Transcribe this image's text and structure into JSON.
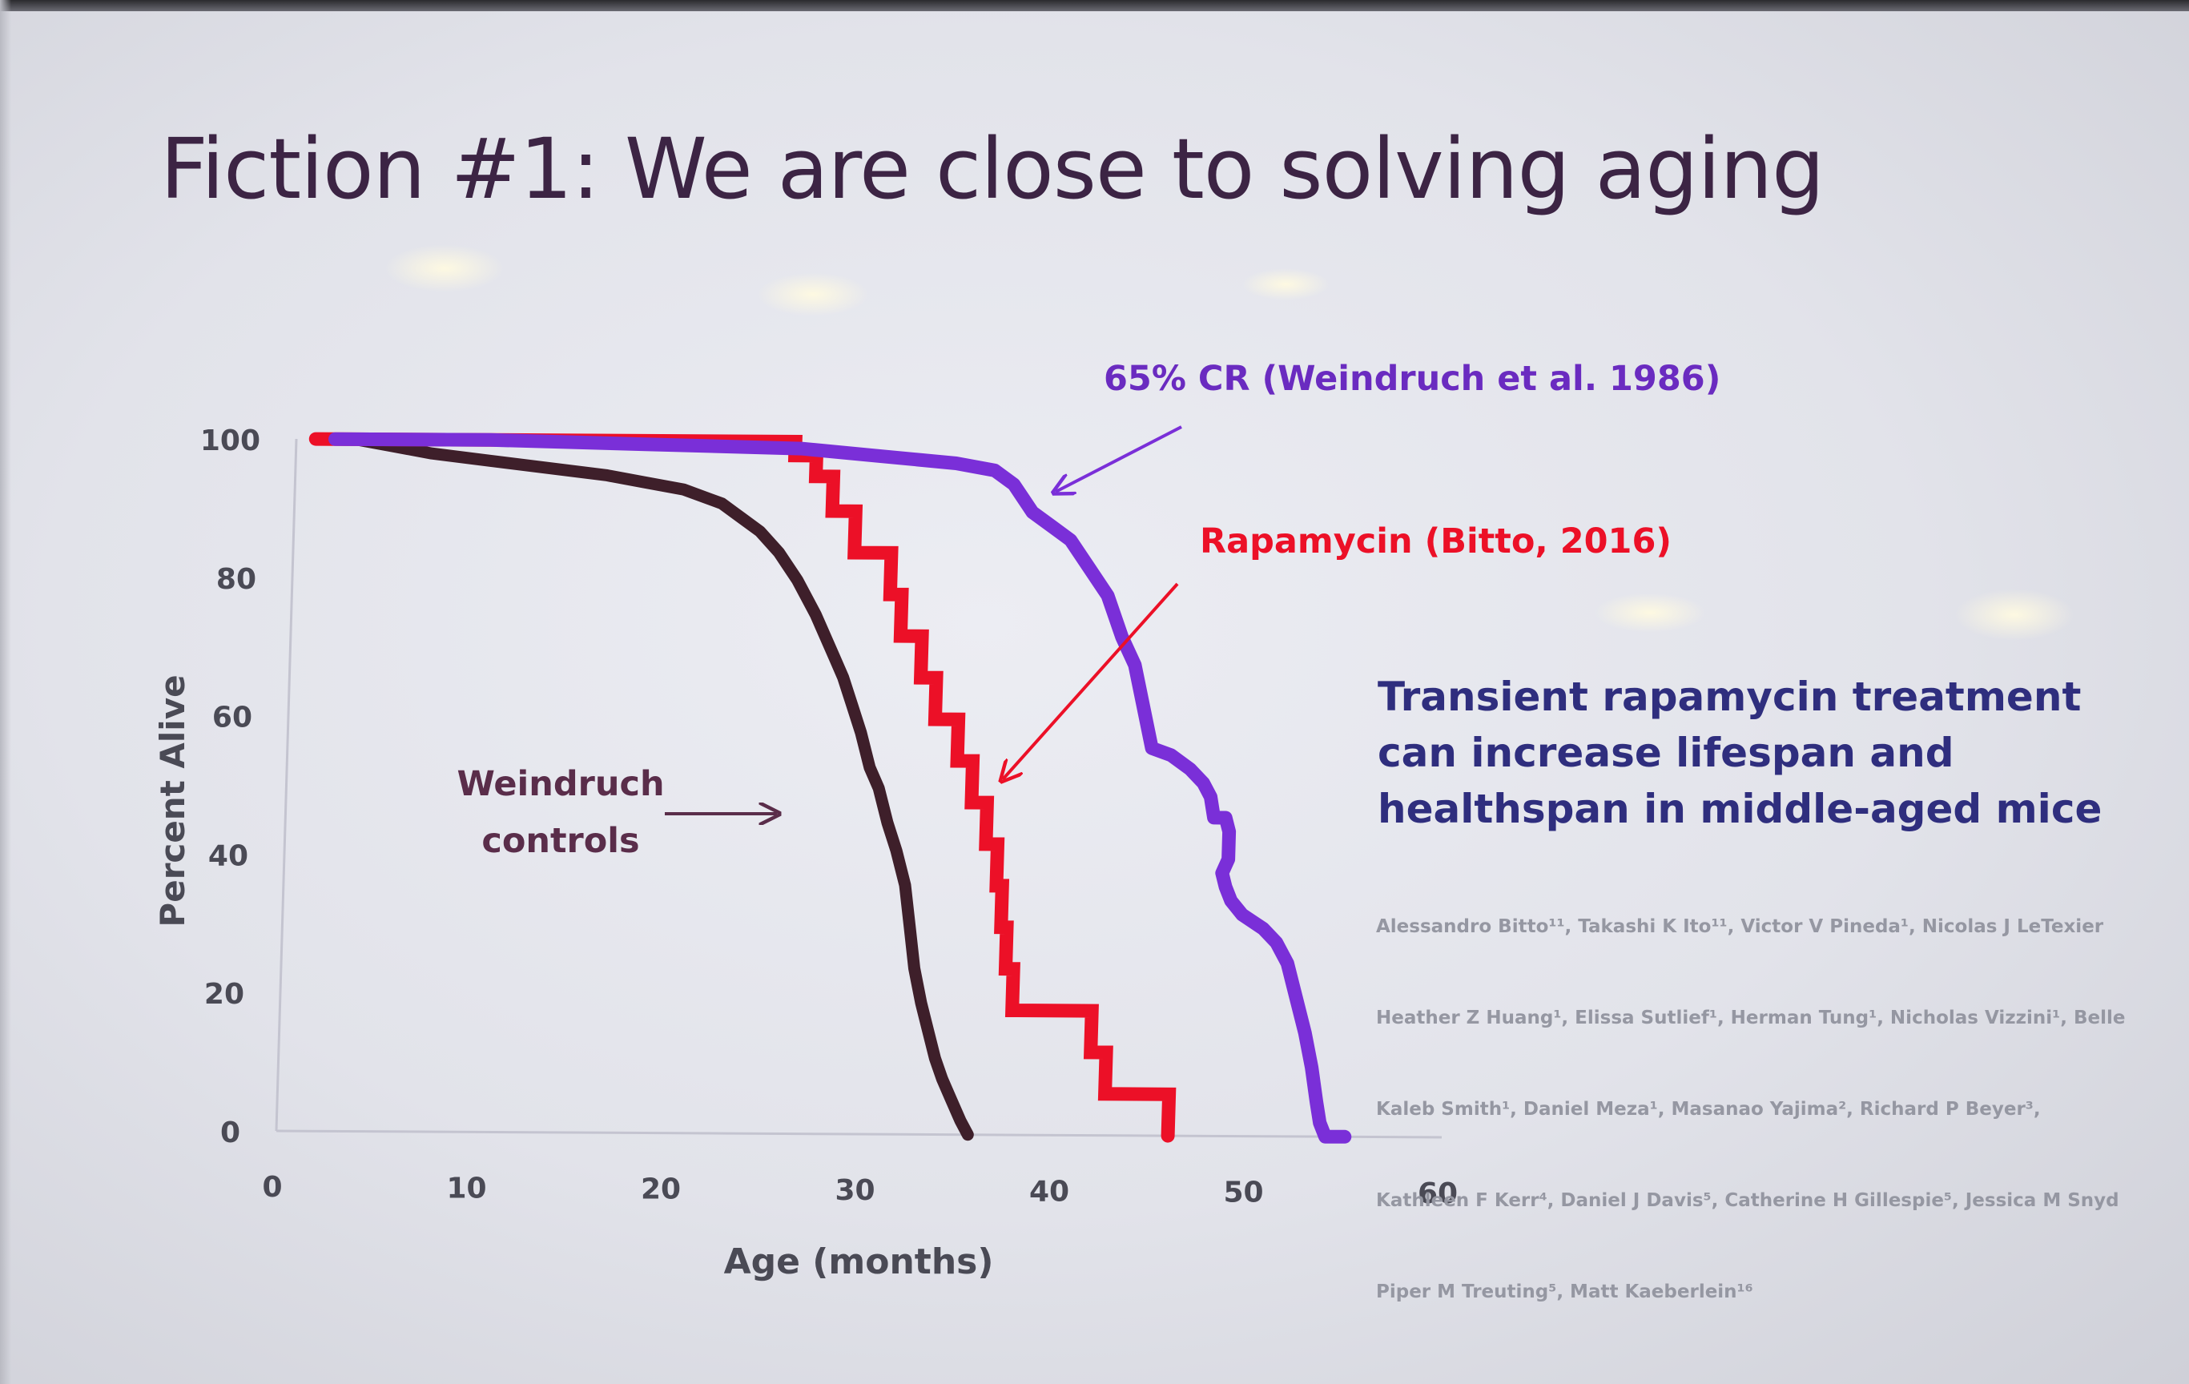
{
  "slide": {
    "title": "Fiction #1: We are close to solving aging"
  },
  "paper": {
    "title": "Transient rapamycin treatment can increase lifespan and healthspan in middle-aged mice",
    "authors_lines": [
      "Alessandro Bitto¹¹, Takashi K Ito¹¹, Victor V Pineda¹, Nicolas J LeTexier",
      "Heather Z Huang¹, Elissa Sutlief¹, Herman Tung¹, Nicholas Vizzini¹, Belle",
      "Kaleb Smith¹, Daniel Meza¹, Masanao Yajima², Richard P Beyer³,",
      "Kathleen F Kerr⁴, Daniel J Davis⁵, Catherine H Gillespie⁵, Jessica M Snyd",
      "Piper M Treuting⁵, Matt Kaeberlein¹⁶"
    ]
  },
  "colors": {
    "title": "#3c2444",
    "controls": "#3e1f2a",
    "rapamycin": "#ec1027",
    "cr": "#7a2fd8",
    "axis_text": "#4a4a55",
    "paper_title": "#2f2e7e",
    "controls_annotation": "#5a2d4a"
  },
  "chart_data": {
    "type": "line",
    "xlabel": "Age (months)",
    "ylabel": "Percent Alive",
    "xlim": [
      0,
      60
    ],
    "ylim": [
      0,
      100
    ],
    "xticks": [
      "0",
      "10",
      "20",
      "30",
      "40",
      "50",
      "60"
    ],
    "yticks": [
      "0",
      "20",
      "40",
      "60",
      "80",
      "100"
    ],
    "grid": false,
    "annotations": [
      {
        "text": "65% CR (Weindruch et al. 1986)",
        "series": "cr"
      },
      {
        "text": "Rapamycin (Bitto, 2016)",
        "series": "rapamycin"
      },
      {
        "lines": [
          "Weindruch",
          "controls"
        ],
        "series": "controls"
      }
    ],
    "series": [
      {
        "id": "controls",
        "points": [
          [
            1,
            100
          ],
          [
            3,
            100
          ],
          [
            5,
            99
          ],
          [
            7,
            98
          ],
          [
            10,
            97
          ],
          [
            13,
            96
          ],
          [
            16,
            95
          ],
          [
            18,
            94
          ],
          [
            20,
            93
          ],
          [
            22,
            91
          ],
          [
            23,
            89
          ],
          [
            24,
            87
          ],
          [
            25,
            84
          ],
          [
            26,
            80
          ],
          [
            27,
            75
          ],
          [
            28,
            69
          ],
          [
            28.5,
            66
          ],
          [
            29,
            62
          ],
          [
            29.5,
            58
          ],
          [
            30,
            53
          ],
          [
            30.5,
            50
          ],
          [
            31,
            45
          ],
          [
            31.5,
            41
          ],
          [
            32,
            36
          ],
          [
            32.3,
            30
          ],
          [
            32.6,
            24
          ],
          [
            33,
            19
          ],
          [
            33.4,
            15
          ],
          [
            33.8,
            11
          ],
          [
            34.2,
            8
          ],
          [
            34.7,
            5
          ],
          [
            35.2,
            2
          ],
          [
            35.6,
            0
          ]
        ]
      },
      {
        "id": "rapamycin",
        "step": true,
        "points": [
          [
            1,
            100
          ],
          [
            25.7,
            100
          ],
          [
            25.7,
            98
          ],
          [
            26.8,
            98
          ],
          [
            26.8,
            95
          ],
          [
            27.7,
            95
          ],
          [
            27.7,
            90
          ],
          [
            28.9,
            90
          ],
          [
            28.9,
            84
          ],
          [
            30.8,
            84
          ],
          [
            30.8,
            78
          ],
          [
            31.4,
            78
          ],
          [
            31.4,
            72
          ],
          [
            32.5,
            72
          ],
          [
            32.5,
            66
          ],
          [
            33.3,
            66
          ],
          [
            33.3,
            60
          ],
          [
            34.5,
            60
          ],
          [
            34.5,
            54
          ],
          [
            35.3,
            54
          ],
          [
            35.3,
            48
          ],
          [
            36.1,
            48
          ],
          [
            36.1,
            42
          ],
          [
            36.7,
            42
          ],
          [
            36.7,
            36
          ],
          [
            37,
            36
          ],
          [
            37,
            30
          ],
          [
            37.3,
            30
          ],
          [
            37.3,
            24
          ],
          [
            37.7,
            24
          ],
          [
            37.7,
            18
          ],
          [
            41.8,
            18
          ],
          [
            41.8,
            12
          ],
          [
            42.6,
            12
          ],
          [
            42.6,
            6
          ],
          [
            45.9,
            6
          ],
          [
            45.9,
            0
          ]
        ]
      },
      {
        "id": "cr",
        "points": [
          [
            2,
            100
          ],
          [
            10,
            100
          ],
          [
            18,
            99.5
          ],
          [
            26,
            99
          ],
          [
            30,
            98
          ],
          [
            34,
            97
          ],
          [
            36,
            96
          ],
          [
            37,
            94
          ],
          [
            37.5,
            92
          ],
          [
            38,
            90
          ],
          [
            39,
            88
          ],
          [
            40,
            86
          ],
          [
            41,
            82
          ],
          [
            42,
            78
          ],
          [
            42.8,
            72
          ],
          [
            43.5,
            68
          ],
          [
            44,
            62
          ],
          [
            44.5,
            56
          ],
          [
            45.5,
            55
          ],
          [
            46.5,
            53
          ],
          [
            47.2,
            51
          ],
          [
            47.6,
            49
          ],
          [
            47.8,
            46
          ],
          [
            48.4,
            46
          ],
          [
            48.6,
            44
          ],
          [
            48.6,
            40
          ],
          [
            48.3,
            38
          ],
          [
            48.5,
            36
          ],
          [
            48.8,
            34
          ],
          [
            49.4,
            32
          ],
          [
            50.5,
            30
          ],
          [
            51.2,
            28
          ],
          [
            51.8,
            25
          ],
          [
            52.2,
            21
          ],
          [
            52.8,
            15
          ],
          [
            53.2,
            10
          ],
          [
            53.5,
            5
          ],
          [
            53.7,
            2
          ],
          [
            54,
            0
          ],
          [
            55,
            0
          ]
        ]
      }
    ]
  }
}
